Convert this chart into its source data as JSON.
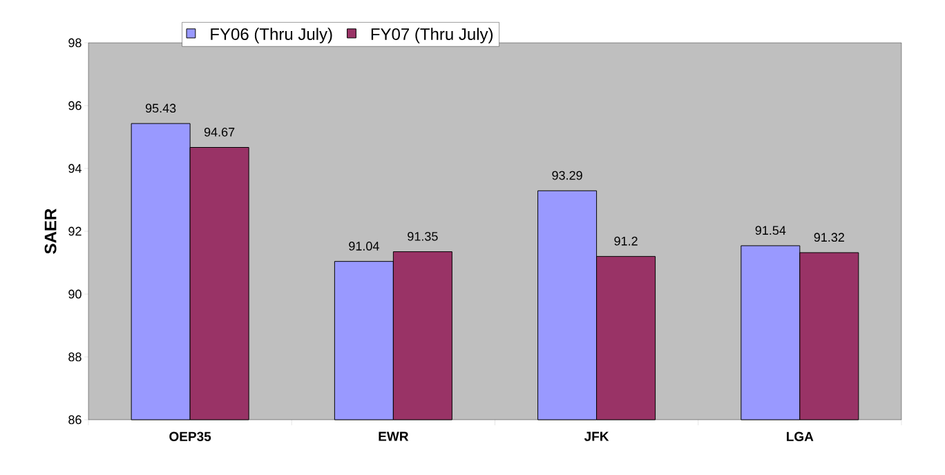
{
  "chart_data": {
    "type": "bar",
    "ylabel": "SAER",
    "categories": [
      "OEP35",
      "EWR",
      "JFK",
      "LGA"
    ],
    "series": [
      {
        "name": "FY06 (Thru July)",
        "color": "#9999ff",
        "values": [
          95.43,
          91.04,
          93.29,
          91.54
        ]
      },
      {
        "name": "FY07 (Thru July)",
        "color": "#993366",
        "values": [
          94.67,
          91.35,
          91.2,
          91.32
        ]
      }
    ],
    "ylim": [
      86,
      98
    ],
    "yticks": [
      86,
      88,
      90,
      92,
      94,
      96,
      98
    ],
    "data_labels": true,
    "legend": "top",
    "grid": false
  }
}
